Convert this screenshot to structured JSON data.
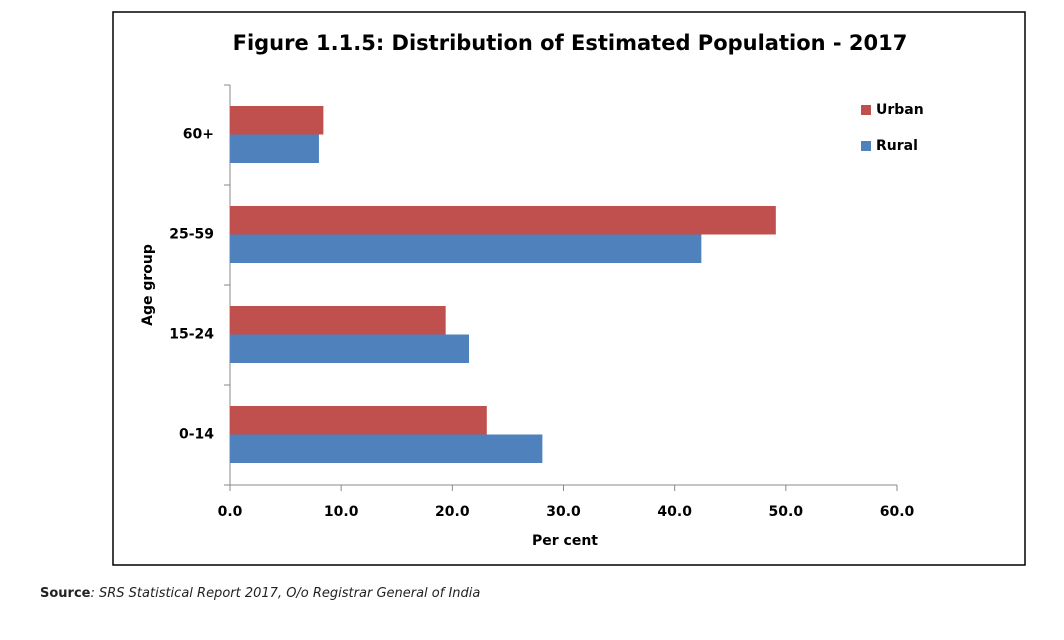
{
  "chart_data": {
    "type": "hbar",
    "title": "Figure 1.1.5: Distribution of Estimated Population - 2017",
    "x_label": "Per cent",
    "y_label": "Age group",
    "categories": [
      "0-14",
      "15-24",
      "25-59",
      "60+"
    ],
    "series": [
      {
        "name": "Urban",
        "color": "#c0504d",
        "values": [
          23.1,
          19.4,
          49.1,
          8.4
        ]
      },
      {
        "name": "Rural",
        "color": "#4f81bd",
        "values": [
          28.1,
          21.5,
          42.4,
          8.0
        ]
      }
    ],
    "xlim": [
      0,
      60
    ],
    "xticks": [
      {
        "value": 0,
        "label": "0.0"
      },
      {
        "value": 10,
        "label": "10.0"
      },
      {
        "value": 20,
        "label": "20.0"
      },
      {
        "value": 30,
        "label": "30.0"
      },
      {
        "value": 40,
        "label": "40.0"
      },
      {
        "value": 50,
        "label": "50.0"
      },
      {
        "value": 60,
        "label": "60.0"
      }
    ],
    "grid": false,
    "legend": "top-right"
  },
  "source": {
    "label": "Source",
    "text": ": SRS Statistical Report 2017, O/o Registrar General of India"
  }
}
